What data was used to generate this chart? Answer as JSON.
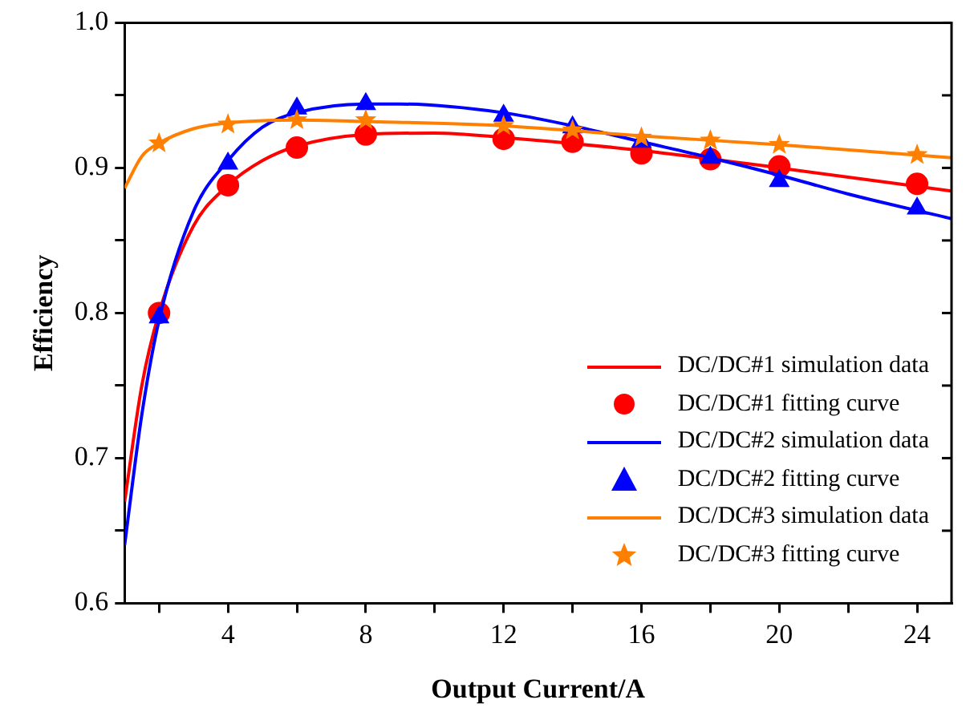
{
  "chart_data": {
    "type": "scatter",
    "xlabel": "Output Current/A",
    "ylabel": "Efficiency",
    "xlim": [
      1,
      25
    ],
    "xticks": [
      {
        "value": 2,
        "label": null
      },
      4,
      {
        "value": 6,
        "label": null
      },
      8,
      {
        "value": 10,
        "label": null
      },
      12,
      {
        "value": 14,
        "label": null
      },
      16,
      {
        "value": 18,
        "label": null
      },
      20,
      {
        "value": 22,
        "label": null
      },
      24
    ],
    "ylim": [
      0.6,
      1.0
    ],
    "yticks": [
      0.6,
      {
        "value": 0.65,
        "label": null
      },
      0.7,
      {
        "value": 0.75,
        "label": null
      },
      0.8,
      {
        "value": 0.85,
        "label": null
      },
      0.9,
      {
        "value": 0.95,
        "label": null
      },
      {
        "value": 1.0,
        "label": "1.0"
      }
    ],
    "grid": false,
    "legend": "bottom right",
    "series": [
      {
        "name": "DC/DC#1 simulation data",
        "type": "line",
        "marker": "none",
        "color": "#ff0000",
        "x": [
          1,
          1.5,
          2,
          3,
          4,
          5,
          6,
          8,
          10,
          12,
          16,
          20,
          25
        ],
        "values": [
          0.67,
          0.75,
          0.8,
          0.86,
          0.888,
          0.905,
          0.915,
          0.923,
          0.924,
          0.921,
          0.912,
          0.9,
          0.884
        ]
      },
      {
        "name": "DC/DC#1 fitting curve",
        "type": "scatter",
        "marker": "circle",
        "color": "#ff0000",
        "x": [
          2,
          4,
          6,
          8,
          12,
          14,
          16,
          18,
          20,
          24
        ],
        "values": [
          0.8,
          0.888,
          0.914,
          0.923,
          0.92,
          0.918,
          0.91,
          0.906,
          0.901,
          0.889
        ]
      },
      {
        "name": "DC/DC#2 simulation data",
        "type": "line",
        "marker": "none",
        "color": "#0000ff",
        "x": [
          1,
          1.5,
          2,
          3,
          4,
          5,
          6,
          8,
          9,
          12,
          14,
          16,
          18,
          20,
          22,
          25
        ],
        "values": [
          0.64,
          0.73,
          0.795,
          0.87,
          0.905,
          0.928,
          0.938,
          0.944,
          0.944,
          0.938,
          0.929,
          0.918,
          0.907,
          0.895,
          0.882,
          0.865
        ]
      },
      {
        "name": "DC/DC#2 fitting curve",
        "type": "scatter",
        "marker": "triangle",
        "color": "#0000ff",
        "x": [
          2,
          4,
          6,
          8,
          12,
          14,
          16,
          18,
          20,
          24
        ],
        "values": [
          0.797,
          0.903,
          0.941,
          0.944,
          0.936,
          0.928,
          0.918,
          0.907,
          0.891,
          0.872
        ]
      },
      {
        "name": "DC/DC#3 simulation data",
        "type": "line",
        "marker": "none",
        "color": "#ff8000",
        "x": [
          1,
          1.5,
          2,
          3,
          4,
          6,
          8,
          12,
          16,
          20,
          25
        ],
        "values": [
          0.886,
          0.908,
          0.917,
          0.927,
          0.931,
          0.933,
          0.932,
          0.929,
          0.922,
          0.916,
          0.907
        ]
      },
      {
        "name": "DC/DC#3 fitting curve",
        "type": "scatter",
        "marker": "star",
        "color": "#ff8000",
        "x": [
          2,
          4,
          6,
          8,
          12,
          14,
          16,
          18,
          20,
          24
        ],
        "values": [
          0.917,
          0.93,
          0.933,
          0.933,
          0.929,
          0.926,
          0.921,
          0.919,
          0.916,
          0.909
        ]
      }
    ]
  }
}
